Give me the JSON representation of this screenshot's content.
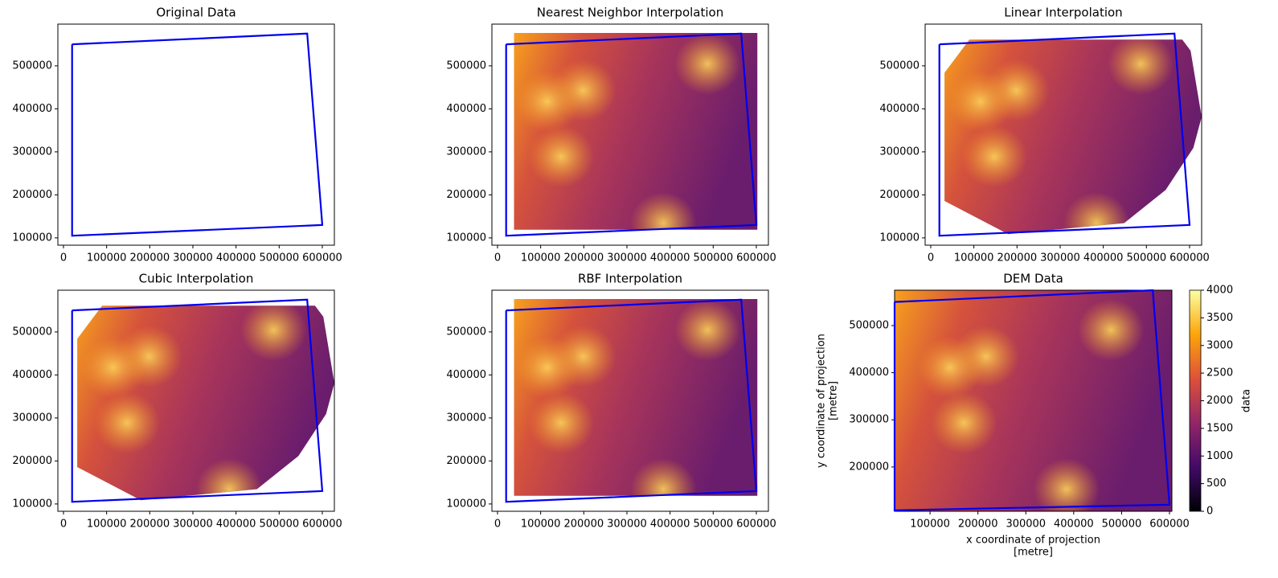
{
  "chart_data": [
    {
      "type": "heatmap",
      "title": "Original Data",
      "xlim": [
        -13000,
        628000
      ],
      "ylim": [
        83000,
        597000
      ],
      "xticks": [
        0,
        100000,
        200000,
        300000,
        400000,
        500000,
        600000
      ],
      "yticks": [
        100000,
        200000,
        300000,
        400000,
        500000
      ],
      "boundary": {
        "x": [
          20000,
          565000,
          600000,
          20000,
          20000
        ],
        "y": [
          550000,
          575000,
          130000,
          105000,
          550000
        ],
        "color": "#0000ee"
      }
    },
    {
      "type": "heatmap",
      "title": "Nearest Neighbor Interpolation",
      "xlim": [
        -13000,
        628000
      ],
      "ylim": [
        83000,
        597000
      ],
      "xticks": [
        0,
        100000,
        200000,
        300000,
        400000,
        500000,
        600000
      ],
      "yticks": [
        100000,
        200000,
        300000,
        400000,
        500000
      ],
      "boundary": {
        "x": [
          20000,
          565000,
          600000,
          20000,
          20000
        ],
        "y": [
          550000,
          575000,
          130000,
          105000,
          550000
        ],
        "color": "#0000ee"
      }
    },
    {
      "type": "heatmap",
      "title": "Linear Interpolation",
      "xlim": [
        -13000,
        628000
      ],
      "ylim": [
        83000,
        597000
      ],
      "xticks": [
        0,
        100000,
        200000,
        300000,
        400000,
        500000,
        600000
      ],
      "yticks": [
        100000,
        200000,
        300000,
        400000,
        500000
      ],
      "boundary": {
        "x": [
          20000,
          565000,
          600000,
          20000,
          20000
        ],
        "y": [
          550000,
          575000,
          130000,
          105000,
          550000
        ],
        "color": "#0000ee"
      }
    },
    {
      "type": "heatmap",
      "title": "Cubic Interpolation",
      "xlim": [
        -13000,
        628000
      ],
      "ylim": [
        83000,
        597000
      ],
      "xticks": [
        0,
        100000,
        200000,
        300000,
        400000,
        500000,
        600000
      ],
      "yticks": [
        100000,
        200000,
        300000,
        400000,
        500000
      ],
      "boundary": {
        "x": [
          20000,
          565000,
          600000,
          20000,
          20000
        ],
        "y": [
          550000,
          575000,
          130000,
          105000,
          550000
        ],
        "color": "#0000ee"
      }
    },
    {
      "type": "heatmap",
      "title": "RBF Interpolation",
      "xlim": [
        -13000,
        628000
      ],
      "ylim": [
        83000,
        597000
      ],
      "xticks": [
        0,
        100000,
        200000,
        300000,
        400000,
        500000,
        600000
      ],
      "yticks": [
        100000,
        200000,
        300000,
        400000,
        500000
      ],
      "boundary": {
        "x": [
          20000,
          565000,
          600000,
          20000,
          20000
        ],
        "y": [
          550000,
          575000,
          130000,
          105000,
          550000
        ],
        "color": "#0000ee"
      }
    },
    {
      "type": "heatmap",
      "title": "DEM Data",
      "xlim": [
        26000,
        605000
      ],
      "ylim": [
        106000,
        575000
      ],
      "xticks": [
        100000,
        200000,
        300000,
        400000,
        500000,
        600000
      ],
      "yticks": [
        200000,
        300000,
        400000,
        500000
      ],
      "xlabel": [
        "x coordinate of projection",
        "[metre]"
      ],
      "ylabel": [
        "y coordinate of projection",
        "[metre]"
      ],
      "boundary": {
        "x": [
          26000,
          565000,
          600000,
          26000,
          26000
        ],
        "y": [
          550000,
          575000,
          120000,
          108000,
          550000
        ],
        "color": "#0000ee"
      },
      "colorbar": {
        "label": "data",
        "lim": [
          0,
          4000
        ],
        "ticks": [
          0,
          500,
          1000,
          1500,
          2000,
          2500,
          3000,
          3500,
          4000
        ]
      }
    }
  ]
}
